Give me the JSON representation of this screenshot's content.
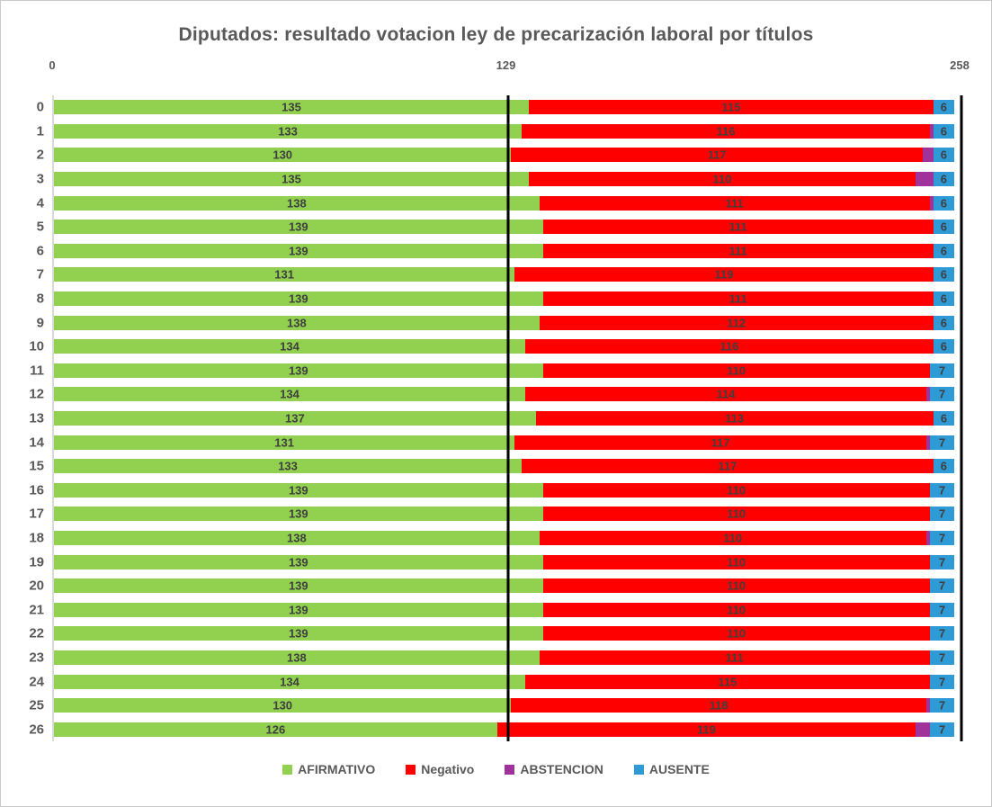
{
  "title": "Diputados: resultado votacion ley de precarización laboral por títulos",
  "axis": {
    "ticks": [
      {
        "label": "0",
        "pos_pct": 0
      },
      {
        "label": "129",
        "pos_pct": 50
      },
      {
        "label": "258",
        "pos_pct": 100
      }
    ],
    "max": 258,
    "reference_lines_x": [
      129,
      258
    ]
  },
  "label_color": "#3f3f3f",
  "chart_data": {
    "type": "bar",
    "orientation": "horizontal",
    "stacked": true,
    "title": "Diputados: resultado votacion ley de precarización laboral por títulos",
    "xlim": [
      0,
      258
    ],
    "grid": false,
    "legend_position": "bottom",
    "categories": [
      "0",
      "1",
      "2",
      "3",
      "4",
      "5",
      "6",
      "7",
      "8",
      "9",
      "10",
      "11",
      "12",
      "13",
      "14",
      "15",
      "16",
      "17",
      "18",
      "19",
      "20",
      "21",
      "22",
      "23",
      "24",
      "25",
      "26"
    ],
    "series": [
      {
        "name": "AFIRMATIVO",
        "color": "#92D050",
        "show_labels": true,
        "values": [
          135,
          133,
          130,
          135,
          138,
          139,
          139,
          131,
          139,
          138,
          134,
          139,
          134,
          137,
          131,
          133,
          139,
          139,
          138,
          139,
          139,
          139,
          139,
          138,
          134,
          130,
          126
        ]
      },
      {
        "name": "Negativo",
        "color": "#FF0000",
        "show_labels": true,
        "values": [
          115,
          116,
          117,
          110,
          111,
          111,
          111,
          119,
          111,
          112,
          116,
          110,
          114,
          113,
          117,
          117,
          110,
          110,
          110,
          110,
          110,
          110,
          110,
          111,
          115,
          118,
          119
        ]
      },
      {
        "name": "ABSTENCION",
        "color": "#A0329B",
        "show_labels": false,
        "values": [
          0,
          1,
          3,
          5,
          1,
          0,
          0,
          0,
          0,
          0,
          0,
          0,
          1,
          0,
          1,
          0,
          0,
          0,
          1,
          0,
          0,
          0,
          0,
          0,
          0,
          1,
          4
        ]
      },
      {
        "name": "AUSENTE",
        "color": "#2E9BD6",
        "show_labels": true,
        "values": [
          6,
          6,
          6,
          6,
          6,
          6,
          6,
          6,
          6,
          6,
          6,
          7,
          7,
          6,
          7,
          6,
          7,
          7,
          7,
          7,
          7,
          7,
          7,
          7,
          7,
          7,
          7
        ]
      }
    ]
  }
}
